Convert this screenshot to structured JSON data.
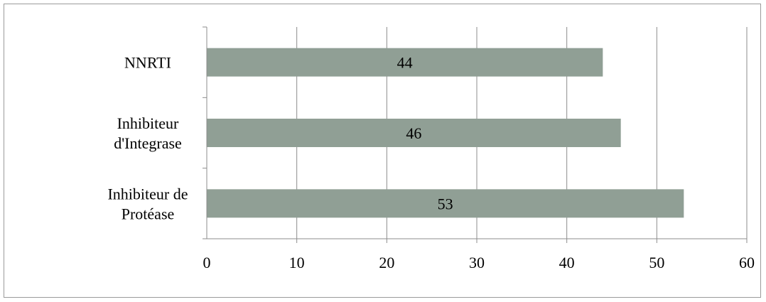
{
  "chart_data": {
    "type": "bar",
    "orientation": "horizontal",
    "categories": [
      [
        "Inhibiteur de",
        "Protéase"
      ],
      [
        "Inhibiteur",
        "d'Integrase"
      ],
      [
        "NNRTI"
      ]
    ],
    "values": [
      53,
      46,
      44
    ],
    "data_labels": [
      "53",
      "46",
      "44"
    ],
    "x_ticks": [
      "0",
      "10",
      "20",
      "30",
      "40",
      "50",
      "60"
    ],
    "xlim": [
      0,
      60
    ],
    "grid": "vertical",
    "bar_color": "#909f95",
    "title": "",
    "xlabel": "",
    "ylabel": ""
  }
}
